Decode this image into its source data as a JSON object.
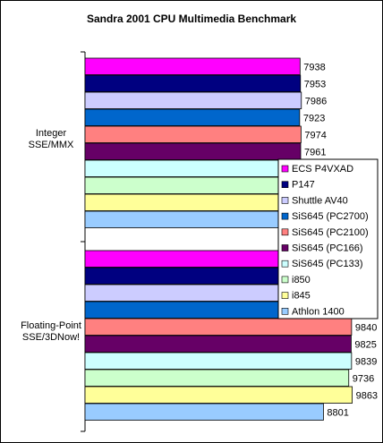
{
  "chart_data": {
    "type": "bar",
    "orientation": "horizontal",
    "title": "Sandra 2001 CPU Multimedia Benchmark",
    "xlabel": "",
    "ylabel": "",
    "xlim": [
      0,
      11000
    ],
    "grid": false,
    "legend": "right",
    "categories": [
      [
        "Integer",
        "SSE/MMX"
      ],
      [
        "Floating-Point",
        "SSE/3DNow!"
      ]
    ],
    "series": [
      {
        "name": "ECS P4VXAD",
        "color": "#FF00FF",
        "values": [
          7938,
          9819
        ]
      },
      {
        "name": "P147",
        "color": "#000080",
        "values": [
          7953,
          9811
        ]
      },
      {
        "name": "Shuttle AV40",
        "color": "#CCCCFF",
        "values": [
          7986,
          9868
        ]
      },
      {
        "name": "SiS645 (PC2700)",
        "color": "#0066CC",
        "values": [
          7923,
          9804
        ]
      },
      {
        "name": "SiS645 (PC2100)",
        "color": "#FF8080",
        "values": [
          7974,
          9840
        ]
      },
      {
        "name": "SiS645 (PC166)",
        "color": "#660066",
        "values": [
          7961,
          9825
        ]
      },
      {
        "name": "SiS645 (PC133)",
        "color": "#CCFFFF",
        "values": [
          7964,
          9839
        ]
      },
      {
        "name": "i850",
        "color": "#CCFFCC",
        "values": [
          7922,
          9736
        ]
      },
      {
        "name": "i845",
        "color": "#FFFF99",
        "values": [
          8005,
          9863
        ]
      },
      {
        "name": "Athlon 1400",
        "color": "#99CCFF",
        "values": [
          7667,
          8801
        ]
      }
    ]
  }
}
